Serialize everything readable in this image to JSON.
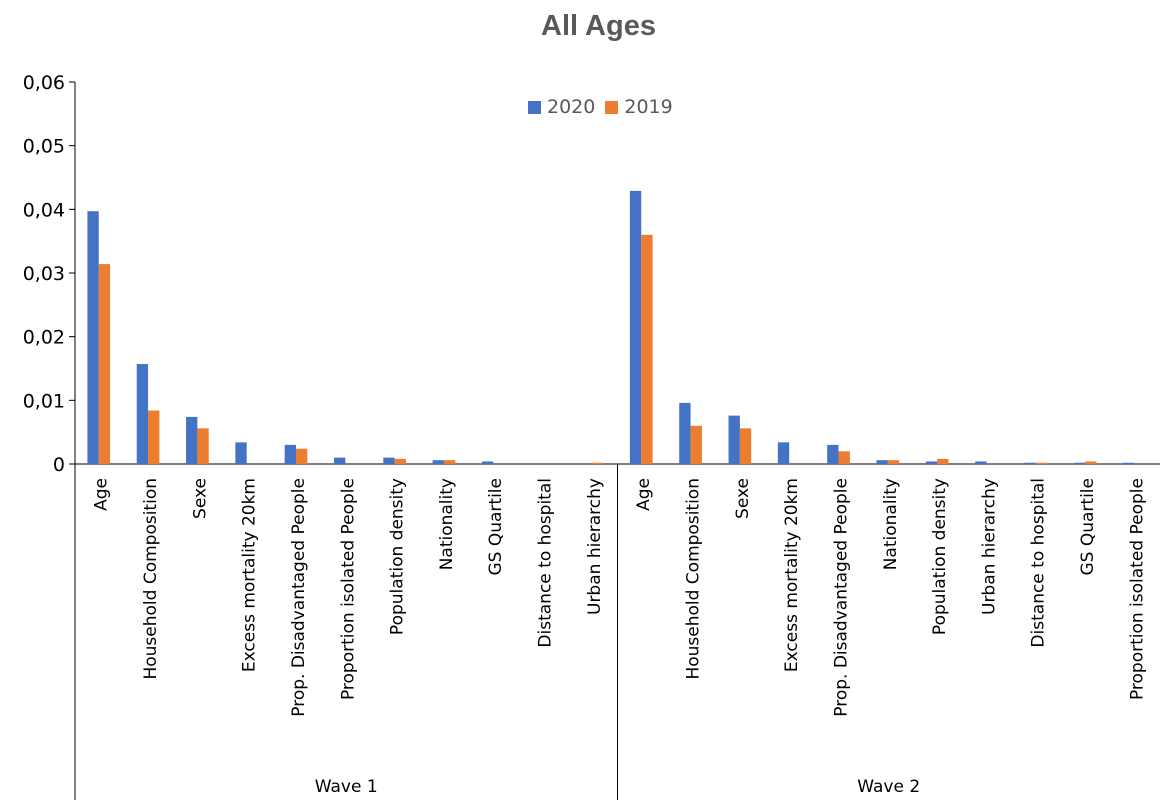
{
  "chart_data": {
    "type": "bar",
    "title": "All Ages",
    "xlabel": "",
    "ylabel": "",
    "ylim": [
      0,
      0.06
    ],
    "y_ticks": [
      0,
      0.01,
      0.02,
      0.03,
      0.04,
      0.05,
      0.06
    ],
    "y_tick_labels": [
      "0",
      "0,01",
      "0,02",
      "0,03",
      "0,04",
      "0,05",
      "0,06"
    ],
    "grid": false,
    "legend_placement": "top-center",
    "series_colors": [
      "#4472c4",
      "#ed7d31"
    ],
    "legend": [
      {
        "name": "2020",
        "color": "#4472c4"
      },
      {
        "name": "2019",
        "color": "#ed7d31"
      }
    ],
    "groups": [
      {
        "label": "Wave 1",
        "categories": [
          "Age",
          "Household Composition",
          "Sexe",
          "Excess mortality 20km",
          "Prop. Disadvantaged People",
          "Proportion isolated People",
          "Population density",
          "Nationality",
          "GS Quartile",
          "Distance to hospital",
          "Urban hierarchy"
        ],
        "series": [
          {
            "name": "2020",
            "values": [
              0.0397,
              0.0157,
              0.0074,
              0.0034,
              0.003,
              0.001,
              0.001,
              0.0006,
              0.0004,
              0.0,
              0.0
            ]
          },
          {
            "name": "2019",
            "values": [
              0.0314,
              0.0084,
              0.0056,
              0.0,
              0.0024,
              0.0,
              0.0008,
              0.0006,
              0.0,
              0.0,
              0.0002
            ]
          }
        ]
      },
      {
        "label": "Wave 2",
        "categories": [
          "Age",
          "Household Composition",
          "Sexe",
          "Excess mortality 20km",
          "Prop. Disadvantaged People",
          "Nationality",
          "Population density",
          "Urban hierarchy",
          "Distance to hospital",
          "GS Quartile",
          "Proportion isolated People"
        ],
        "series": [
          {
            "name": "2020",
            "values": [
              0.0429,
              0.0096,
              0.0076,
              0.0034,
              0.003,
              0.0006,
              0.0004,
              0.0004,
              0.0002,
              0.0002,
              0.0002
            ]
          },
          {
            "name": "2019",
            "values": [
              0.036,
              0.006,
              0.0056,
              0.0,
              0.002,
              0.0006,
              0.0008,
              0.0,
              0.0002,
              0.0004,
              0.0
            ]
          }
        ]
      }
    ]
  }
}
